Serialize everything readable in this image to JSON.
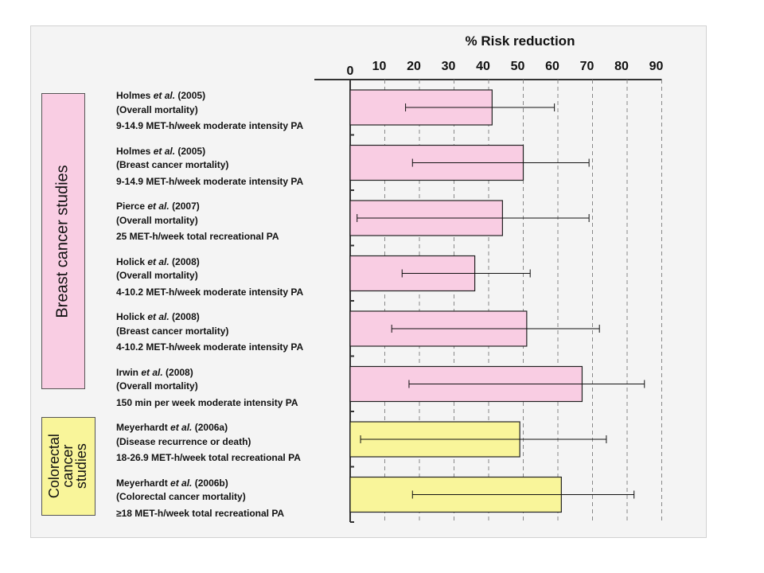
{
  "chart_data": {
    "type": "bar",
    "orientation": "horizontal",
    "title": "% Risk reduction",
    "xlim": [
      0,
      90
    ],
    "xticks": [
      "0",
      "10",
      "20",
      "30",
      "40",
      "50",
      "60",
      "70",
      "80",
      "90"
    ],
    "grid": "dashed vertical",
    "groups": [
      {
        "label": "Breast cancer studies",
        "color": "#f9cde3"
      },
      {
        "label": "Colorectal\ncancer\nstudies",
        "color": "#f9f59a"
      }
    ],
    "studies": [
      {
        "author": "Holmes",
        "etal": "et al.",
        "year": "(2005)",
        "outcome": "(Overall mortality)",
        "pa": "9-14.9 MET-h/week moderate intensity PA",
        "value": 41,
        "ci": [
          16,
          59
        ],
        "group": 0
      },
      {
        "author": "Holmes",
        "etal": "et al.",
        "year": "(2005)",
        "outcome": "(Breast cancer mortality)",
        "pa": "9-14.9 MET-h/week moderate intensity PA",
        "value": 50,
        "ci": [
          18,
          69
        ],
        "group": 0
      },
      {
        "author": "Pierce",
        "etal": "et al.",
        "year": "(2007)",
        "outcome": "(Overall mortality)",
        "pa": "25 MET-h/week total recreational PA",
        "value": 44,
        "ci": [
          2,
          69
        ],
        "group": 0
      },
      {
        "author": "Holick",
        "etal": "et al.",
        "year": "(2008)",
        "outcome": "(Overall mortality)",
        "pa": "4-10.2 MET-h/week moderate intensity PA",
        "value": 36,
        "ci": [
          15,
          52
        ],
        "group": 0
      },
      {
        "author": "Holick",
        "etal": "et al.",
        "year": "(2008)",
        "outcome": "(Breast cancer mortality)",
        "pa": "4-10.2 MET-h/week moderate intensity PA",
        "value": 51,
        "ci": [
          12,
          72
        ],
        "group": 0
      },
      {
        "author": "Irwin",
        "etal": "et al.",
        "year": "(2008)",
        "outcome": "(Overall mortality)",
        "pa": "150 min per week moderate intensity PA",
        "value": 67,
        "ci": [
          17,
          85
        ],
        "group": 0
      },
      {
        "author": "Meyerhardt",
        "etal": "et al.",
        "year": "(2006a)",
        "outcome": "(Disease recurrence or death)",
        "pa": "18-26.9 MET-h/week total recreational PA",
        "value": 49,
        "ci": [
          3,
          74
        ],
        "group": 1
      },
      {
        "author": "Meyerhardt",
        "etal": "et al.",
        "year": "(2006b)",
        "outcome": "(Colorectal cancer mortality)",
        "pa": "≥18 MET-h/week total recreational PA",
        "value": 61,
        "ci": [
          18,
          82
        ],
        "group": 1
      }
    ]
  }
}
